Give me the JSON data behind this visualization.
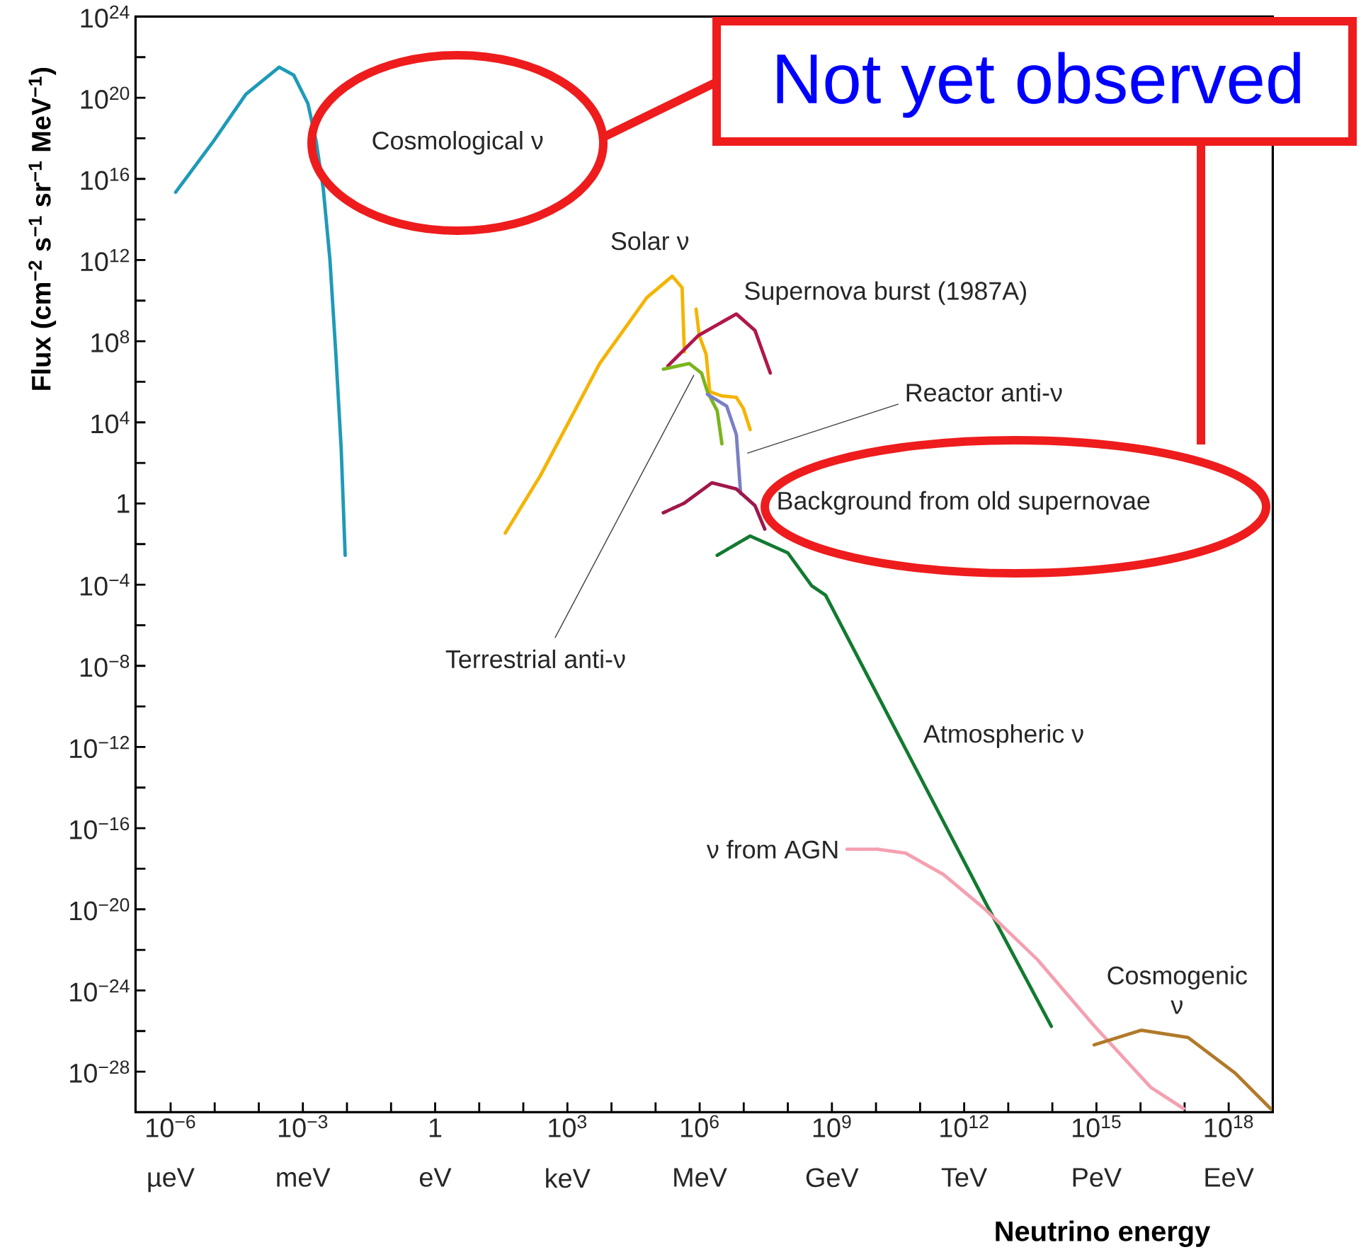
{
  "chart_data": {
    "type": "line",
    "xlabel": "Neutrino energy",
    "ylabel": "Flux (cm$^{−2}$ s$^{−1}$ sr$^{−1}$ MeV$^{−1}$)",
    "log": "xy",
    "marker": "none",
    "xlim": [
      1.6e-07,
      1e+19
    ],
    "ylim": [
      1e-30,
      1e+24
    ],
    "xticks": [
      {
        "value": 1e-06,
        "label": "10$^{−6}$"
      },
      {
        "value": 1e-05,
        "label": null
      },
      {
        "value": 0.0001,
        "label": null
      },
      {
        "value": 0.001,
        "label": "10$^{−3}$"
      },
      {
        "value": 0.01,
        "label": null
      },
      {
        "value": 0.1,
        "label": null
      },
      1,
      {
        "value": 10,
        "label": null
      },
      {
        "value": 100,
        "label": null
      },
      {
        "value": 1000.0,
        "label": "10$^{3}$"
      },
      {
        "value": 10000.0,
        "label": null
      },
      {
        "value": 100000.0,
        "label": null
      },
      {
        "value": 1000000.0,
        "label": "10$^{6}$"
      },
      {
        "value": 10000000.0,
        "label": null
      },
      {
        "value": 100000000.0,
        "label": null
      },
      {
        "value": 1000000000.0,
        "label": "10$^{9}$"
      },
      {
        "value": 10000000000.0,
        "label": null
      },
      {
        "value": 100000000000.0,
        "label": null
      },
      {
        "value": 1000000000000.0,
        "label": "10$^{12}$"
      },
      {
        "value": 10000000000000.0,
        "label": null
      },
      {
        "value": 100000000000000.0,
        "label": null
      },
      {
        "value": 1000000000000000.0,
        "label": "10$^{15}$"
      },
      {
        "value": 1e+16,
        "label": null
      },
      {
        "value": 1e+17,
        "label": null
      },
      {
        "value": 1e+18,
        "label": "10$^{18}$"
      }
    ],
    "yticks": [
      {
        "value": 1e+24,
        "label": "10$^{24}$"
      },
      {
        "value": 1e+22,
        "label": null
      },
      {
        "value": 1e+20,
        "label": "10$^{20}$"
      },
      {
        "value": 1e+18,
        "label": null
      },
      {
        "value": 1e+16,
        "label": "10$^{16}$"
      },
      {
        "value": 100000000000000.0,
        "label": null
      },
      {
        "value": 1000000000000.0,
        "label": "10$^{12}$"
      },
      {
        "value": 10000000000.0,
        "label": null
      },
      {
        "value": 100000000.0,
        "label": "10$^{8}$"
      },
      {
        "value": 1000000.0,
        "label": null
      },
      {
        "value": 10000.0,
        "label": "10$^{4}$"
      },
      {
        "value": 100,
        "label": null
      },
      1,
      {
        "value": 0.01,
        "label": null
      },
      {
        "value": 0.0001,
        "label": "10$^{−4}$"
      },
      {
        "value": 1e-06,
        "label": null
      },
      {
        "value": 1e-08,
        "label": "10$^{−8}$"
      },
      {
        "value": 1e-10,
        "label": null
      },
      {
        "value": 1e-12,
        "label": "10$^{−12}$"
      },
      {
        "value": 1e-14,
        "label": null
      },
      {
        "value": 1e-16,
        "label": "10$^{−16}$"
      },
      {
        "value": 1e-18,
        "label": null
      },
      {
        "value": 1e-20,
        "label": "10$^{−20}$"
      },
      {
        "value": 1e-22,
        "label": null
      },
      {
        "value": 1e-24,
        "label": "10$^{−24}$"
      },
      {
        "value": 1e-26,
        "label": null
      },
      {
        "value": 1e-28,
        "label": "10$^{−28}$"
      }
    ],
    "series": [
      {
        "name": "Cosmological ν",
        "color": "#1e9ab8",
        "x": [
          1.3e-06,
          9.3e-06,
          5.1e-05,
          0.00029,
          0.00062,
          0.0013,
          0.002,
          0.0029,
          0.0041,
          0.0056,
          0.0074,
          0.0091
        ],
        "values": [
          2200000000000000.0,
          7e+17,
          1.5e+20,
          3.2e+21,
          1.3e+21,
          5.2e+19,
          7e+17,
          3300000000000000.0,
          1100000000000.0,
          23000000.0,
          500,
          0.0028
        ]
      },
      {
        "color": "#f5b400",
        "line_style": "dotted",
        "x": [
          39,
          250
        ],
        "values": [
          0.035,
          26
        ]
      },
      {
        "name": "Solar ν",
        "color": "#f5b400",
        "x": [
          250,
          5400,
          63000.0,
          240000.0,
          400000.0,
          450000.0
        ],
        "values": [
          26,
          7900000.0,
          14000000000.0,
          160000000000.0,
          43000000000.0,
          30000000.0
        ]
      },
      {
        "color": "#f5b400",
        "x": [
          830000.0,
          980000.0,
          1400000.0,
          1700000.0,
          3200000.0,
          6800000.0,
          9800000.0,
          14000000.0
        ],
        "values": [
          3800000000.0,
          190000000.0,
          23000000.0,
          320000.0,
          200000.0,
          170000.0,
          49000.0,
          4400.0
        ]
      },
      {
        "name": "Supernova burst (1987A)",
        "color": "#b0174a",
        "x": [
          190000.0,
          930000.0,
          6800000.0,
          18000000.0,
          40000000.0
        ],
        "values": [
          6000000.0,
          190000000.0,
          2200000000.0,
          340000000.0,
          2700000.0
        ]
      },
      {
        "name": "Terrestrial anti-ν",
        "color": "#7ab51d",
        "x": [
          150000.0,
          580000.0,
          1100000.0,
          1500000.0,
          2500000.0,
          3200000.0
        ],
        "values": [
          4200000.0,
          7900000.0,
          2700000.0,
          320000.0,
          37000.0,
          870
        ]
      },
      {
        "name": "Reactor anti-ν",
        "color": "#7b7fc4",
        "x": [
          1500000.0,
          4100000.0,
          6800000.0,
          8500000.0
        ],
        "values": [
          240000.0,
          63000.0,
          2500,
          3.1
        ]
      },
      {
        "color": "#a0174a",
        "line_style": "dotted",
        "x": [
          150000.0,
          450000.0
        ],
        "values": [
          0.35,
          1.05
        ]
      },
      {
        "name": "Background from old supernovae",
        "color": "#a0174a",
        "x": [
          450000.0,
          1900000.0,
          6800000.0,
          18000000.0,
          30000000.0
        ],
        "values": [
          1.05,
          10.5,
          5.2,
          0.79,
          0.055
        ]
      },
      {
        "color": "#127a30",
        "line_style": "dotted",
        "x": [
          2500000.0,
          14000000.0
        ],
        "values": [
          0.0028,
          0.025
        ]
      },
      {
        "name": "Atmospheric ν",
        "color": "#127a30",
        "x": [
          14000000.0,
          100000000.0,
          350000000.0,
          720000000.0,
          3100000000000.0,
          95000000000000.0
        ],
        "values": [
          0.025,
          0.0037,
          8.7e-05,
          3e-05,
          2e-20,
          1.7e-26
        ]
      },
      {
        "color": "#f4a0b0",
        "line_style": "dotted",
        "x": [
          2200000000.0,
          11000000000.0
        ],
        "values": [
          9.1e-18,
          9.1e-18
        ]
      },
      {
        "name": "ν from AGN",
        "color": "#f4a0b0",
        "x": [
          11000000000.0,
          47000000000.0,
          340000000000.0,
          3100000000000.0,
          46000000000000.0,
          890000000000000.0,
          1.7e+16,
          9.5e+16
        ],
        "values": [
          9.1e-18,
          5.9e-18,
          5.2e-19,
          9.3e-21,
          3.3e-23,
          1.8e-26,
          1.7e-29,
          1.5e-30
        ]
      },
      {
        "name": "Cosmogenic ν",
        "color": "#b07a2a",
        "x": [
          890000000000000.0,
          1.05e+16,
          1.2e+17,
          1.4e+18,
          8.9e+18
        ],
        "values": [
          2.1e-27,
          1.1e-26,
          4.8e-27,
          8.5e-29,
          1.5e-30
        ]
      }
    ],
    "annotations": [
      "Not yet observed",
      "µeV",
      "meV",
      "eV",
      "keV",
      "MeV",
      "GeV",
      "TeV",
      "PeV",
      "EeV"
    ]
  }
}
